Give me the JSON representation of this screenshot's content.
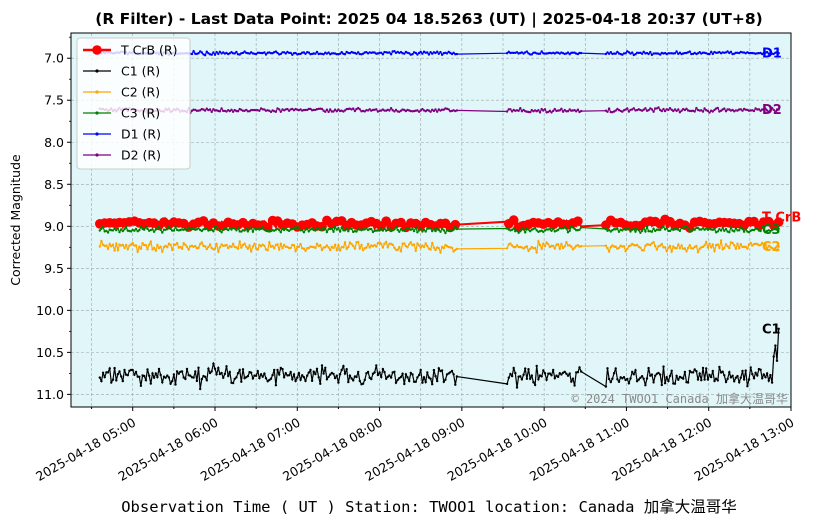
{
  "chart_data": {
    "type": "line",
    "title": "(R Filter) - Last Data Point: 2025 04 18.5263 (UT) | 2025-04-18 20:37 (UT+8)",
    "ylabel": "Corrected Magnitude",
    "xlabel": "Observation Time ( UT )  Station: TWOO1 location: Canada 加拿大温哥华",
    "watermark": "© 2024 TWOO1 Canada 加拿大温哥华",
    "ylim": [
      11.15,
      6.7
    ],
    "y_inverted": true,
    "yticks": [
      7.0,
      7.5,
      8.0,
      8.5,
      9.0,
      9.5,
      10.0,
      10.5,
      11.0
    ],
    "ytick_labels": [
      "7.0",
      "7.5",
      "8.0",
      "8.5",
      "9.0",
      "9.5",
      "10.0",
      "10.5",
      "11.0"
    ],
    "xlim_hours": [
      4.25,
      13.0
    ],
    "xticks_hours": [
      5,
      6,
      7,
      8,
      9,
      10,
      11,
      12,
      13
    ],
    "xtick_labels": [
      "2025-04-18 05:00",
      "2025-04-18 06:00",
      "2025-04-18 07:00",
      "2025-04-18 08:00",
      "2025-04-18 09:00",
      "2025-04-18 10:00",
      "2025-04-18 11:00",
      "2025-04-18 12:00",
      "2025-04-18 13:00"
    ],
    "grid": true,
    "legend_position": "top-left",
    "background_color": "#e0f6f8",
    "observing_segments_hours": [
      [
        4.6,
        8.95
      ],
      [
        9.55,
        10.45
      ],
      [
        10.75,
        12.85
      ]
    ],
    "series": [
      {
        "name": "T CrB (R)",
        "end_label": "T CrB",
        "color": "#ff0000",
        "mean": 8.97,
        "scatter": 0.025,
        "seed": 11,
        "marker": "big",
        "y_start": 8.97,
        "y_end": 8.95
      },
      {
        "name": "C1 (R)",
        "end_label": "C1",
        "color": "#000000",
        "mean": 10.78,
        "scatter": 0.07,
        "seed": 23,
        "marker": "small",
        "y_start": 10.8,
        "y_end": 10.22
      },
      {
        "name": "C2 (R)",
        "end_label": "C2",
        "color": "#ffa500",
        "mean": 9.24,
        "scatter": 0.035,
        "seed": 37,
        "marker": "small",
        "y_start": 9.24,
        "y_end": 9.24
      },
      {
        "name": "C3 (R)",
        "end_label": "C3",
        "color": "#008000",
        "mean": 9.04,
        "scatter": 0.02,
        "seed": 41,
        "marker": "small",
        "y_start": 9.05,
        "y_end": 9.03
      },
      {
        "name": "D1 (R)",
        "end_label": "D1",
        "color": "#0000ff",
        "mean": 6.94,
        "scatter": 0.012,
        "seed": 53,
        "marker": "small",
        "y_start": 6.93,
        "y_end": 6.94
      },
      {
        "name": "D2 (R)",
        "end_label": "D2",
        "color": "#800080",
        "mean": 7.62,
        "scatter": 0.015,
        "seed": 67,
        "marker": "small",
        "y_start": 7.6,
        "y_end": 7.61
      }
    ]
  }
}
